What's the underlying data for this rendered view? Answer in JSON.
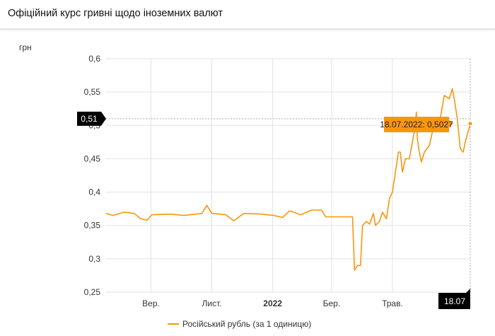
{
  "header": {
    "title": "Офіційний курс гривні щодо іноземних валют"
  },
  "chart_data": {
    "type": "line",
    "ylabel": "грн",
    "ylim": [
      0.25,
      0.6
    ],
    "yticks": [
      "0,25",
      "0,3",
      "0,35",
      "0,4",
      "0,45",
      "0,5",
      "0,55",
      "0,6"
    ],
    "ytick_values": [
      0.25,
      0.3,
      0.35,
      0.4,
      0.45,
      0.5,
      0.55,
      0.6
    ],
    "xlim": [
      "2021-07-18",
      "2022-07-18"
    ],
    "xticks": [
      {
        "date": "2021-09-01",
        "label": "Вер.",
        "bold": false
      },
      {
        "date": "2021-11-01",
        "label": "Лист.",
        "bold": false
      },
      {
        "date": "2022-01-01",
        "label": "2022",
        "bold": true
      },
      {
        "date": "2022-03-01",
        "label": "Бер.",
        "bold": false
      },
      {
        "date": "2022-05-01",
        "label": "Трав.",
        "bold": false
      }
    ],
    "grid": true,
    "color": "#f7960f",
    "series": [
      {
        "name": "Російський рубль (за 1 одиницю)",
        "points": [
          [
            "2021-07-18",
            0.368
          ],
          [
            "2021-07-25",
            0.365
          ],
          [
            "2021-08-05",
            0.37
          ],
          [
            "2021-08-15",
            0.368
          ],
          [
            "2021-08-22",
            0.36
          ],
          [
            "2021-08-28",
            0.358
          ],
          [
            "2021-09-02",
            0.366
          ],
          [
            "2021-09-20",
            0.367
          ],
          [
            "2021-10-04",
            0.365
          ],
          [
            "2021-10-22",
            0.368
          ],
          [
            "2021-10-27",
            0.38
          ],
          [
            "2021-11-01",
            0.368
          ],
          [
            "2021-11-15",
            0.366
          ],
          [
            "2021-11-23",
            0.357
          ],
          [
            "2021-12-03",
            0.368
          ],
          [
            "2021-12-21",
            0.367
          ],
          [
            "2022-01-02",
            0.365
          ],
          [
            "2022-01-11",
            0.362
          ],
          [
            "2022-01-18",
            0.372
          ],
          [
            "2022-01-29",
            0.366
          ],
          [
            "2022-02-09",
            0.373
          ],
          [
            "2022-02-19",
            0.373
          ],
          [
            "2022-02-23",
            0.363
          ],
          [
            "2022-03-22",
            0.363
          ],
          [
            "2022-03-24",
            0.283
          ],
          [
            "2022-03-27",
            0.29
          ],
          [
            "2022-03-30",
            0.29
          ],
          [
            "2022-04-01",
            0.35
          ],
          [
            "2022-04-05",
            0.356
          ],
          [
            "2022-04-08",
            0.352
          ],
          [
            "2022-04-12",
            0.368
          ],
          [
            "2022-04-14",
            0.35
          ],
          [
            "2022-04-18",
            0.356
          ],
          [
            "2022-04-21",
            0.37
          ],
          [
            "2022-04-25",
            0.36
          ],
          [
            "2022-04-28",
            0.39
          ],
          [
            "2022-05-01",
            0.4
          ],
          [
            "2022-05-03",
            0.42
          ],
          [
            "2022-05-07",
            0.46
          ],
          [
            "2022-05-09",
            0.46
          ],
          [
            "2022-05-11",
            0.43
          ],
          [
            "2022-05-14",
            0.45
          ],
          [
            "2022-05-18",
            0.45
          ],
          [
            "2022-05-21",
            0.475
          ],
          [
            "2022-05-24",
            0.5
          ],
          [
            "2022-05-25",
            0.52
          ],
          [
            "2022-05-26",
            0.48
          ],
          [
            "2022-05-28",
            0.46
          ],
          [
            "2022-05-30",
            0.445
          ],
          [
            "2022-06-02",
            0.46
          ],
          [
            "2022-06-07",
            0.47
          ],
          [
            "2022-06-10",
            0.49
          ],
          [
            "2022-06-14",
            0.51
          ],
          [
            "2022-06-17",
            0.503
          ],
          [
            "2022-06-22",
            0.545
          ],
          [
            "2022-06-27",
            0.54
          ],
          [
            "2022-06-30",
            0.555
          ],
          [
            "2022-07-02",
            0.54
          ],
          [
            "2022-07-05",
            0.51
          ],
          [
            "2022-07-08",
            0.465
          ],
          [
            "2022-07-11",
            0.46
          ],
          [
            "2022-07-13",
            0.475
          ],
          [
            "2022-07-18",
            0.5027
          ]
        ]
      }
    ],
    "crosshair": {
      "y_label": "0,51",
      "x_label": "18.07",
      "value": 0.51
    },
    "tooltip": "18.07.2022: 0,5027",
    "legend": {
      "position": "bottom-center"
    }
  }
}
